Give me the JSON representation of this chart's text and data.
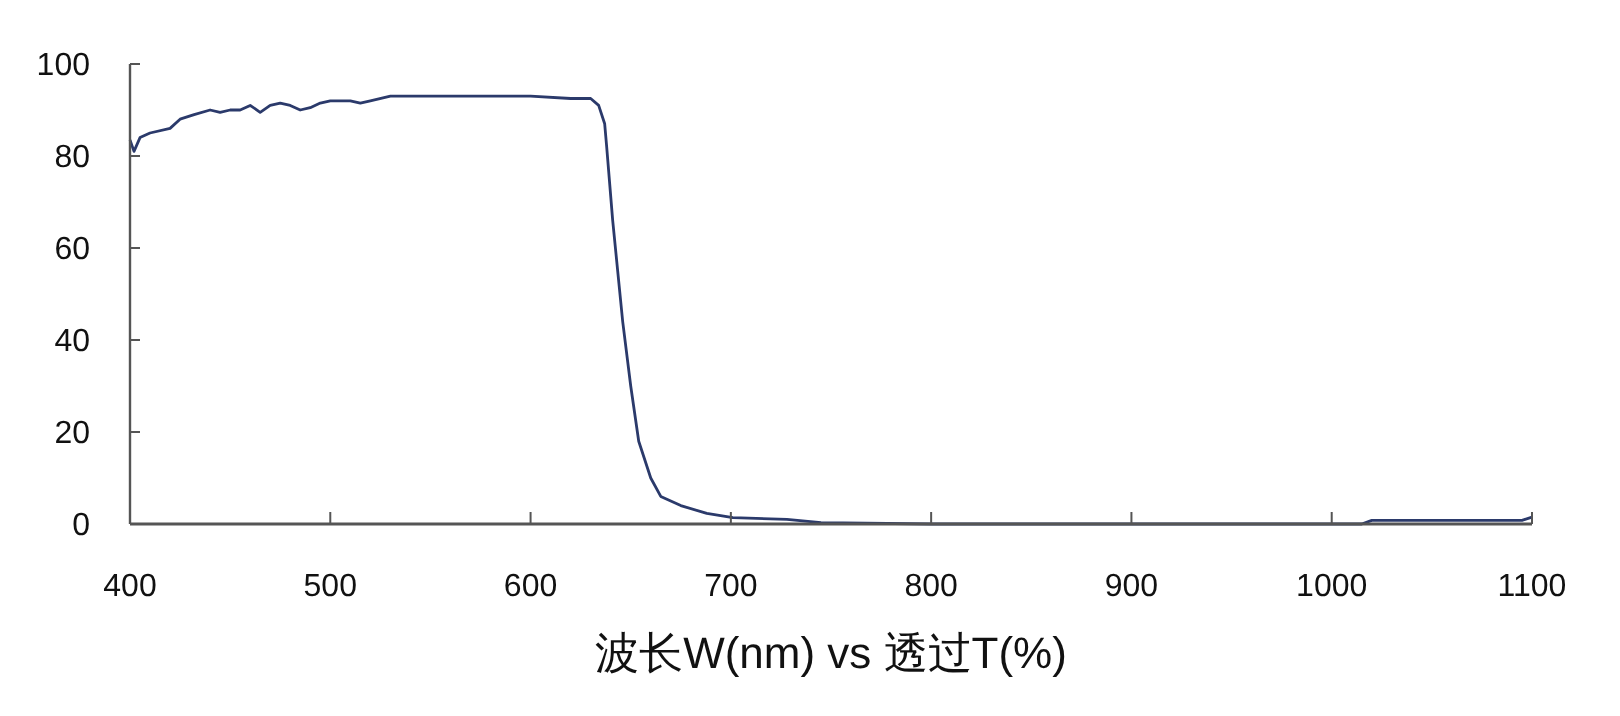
{
  "chart_data": {
    "type": "line",
    "xlabel": "波长W(nm) vs 透过T(%)",
    "xlim": [
      400,
      1100
    ],
    "xticks": [
      400,
      500,
      600,
      700,
      800,
      900,
      1000,
      1100
    ],
    "ylim": [
      0,
      100
    ],
    "yticks": [
      0,
      20,
      40,
      60,
      80,
      100
    ],
    "grid": false,
    "marker": "none",
    "line_style": "solid",
    "series": [
      {
        "color": "#2b3a6b",
        "x": [
          400,
          402,
          405,
          410,
          420,
          425,
          432,
          440,
          445,
          450,
          455,
          460,
          465,
          470,
          475,
          480,
          485,
          490,
          495,
          500,
          510,
          515,
          520,
          530,
          560,
          600,
          620,
          630,
          634,
          637,
          638,
          641,
          646,
          650,
          654,
          660,
          665,
          675,
          688,
          701,
          728,
          745,
          800,
          900,
          1015,
          1020,
          1095,
          1100
        ],
        "values": [
          83.5,
          81,
          84,
          85,
          86,
          88,
          89,
          90,
          89.5,
          90,
          90,
          91,
          89.5,
          91,
          91.5,
          91,
          90,
          90.5,
          91.5,
          92,
          92,
          91.5,
          92,
          93,
          93,
          93,
          92.5,
          92.5,
          91,
          87,
          82,
          66,
          44,
          30,
          18,
          10,
          6,
          4,
          2.3,
          1.4,
          1,
          0.3,
          0,
          0,
          0,
          0.8,
          0.8,
          1.5
        ]
      }
    ]
  }
}
